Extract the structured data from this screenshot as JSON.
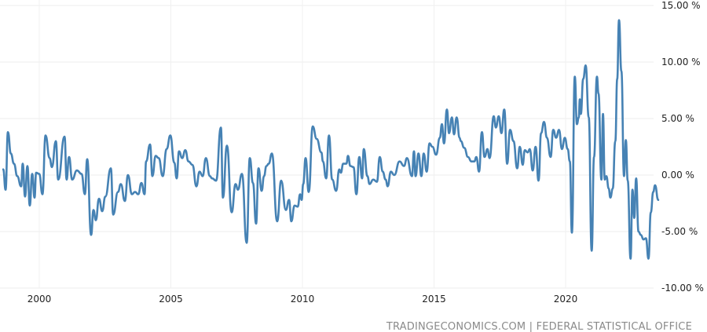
{
  "chart_data": {
    "type": "line",
    "title": "",
    "xlabel": "",
    "ylabel": "",
    "source": "TRADINGECONOMICS.COM | FEDERAL STATISTICAL OFFICE",
    "ylim": [
      -10,
      15
    ],
    "y_ticks": [
      15,
      10,
      5,
      0,
      -5,
      -10
    ],
    "y_tick_labels": [
      "15.00 %",
      "10.00 %",
      "5.00 %",
      "0.00 %",
      "-5.00 %",
      "-10.00 %"
    ],
    "x_ticks": [
      2000,
      2005,
      2010,
      2015,
      2020
    ],
    "x_tick_labels": [
      "2000",
      "2005",
      "2010",
      "2015",
      "2020"
    ],
    "grid": true,
    "line_color": "#4682b4",
    "series": [
      {
        "x": [
          1998.63,
          1998.72,
          1998.81,
          1998.92,
          1999.04,
          1999.16,
          1999.31,
          1999.37,
          1999.46,
          1999.55,
          1999.64,
          1999.73,
          1999.82,
          1999.88,
          2000.0,
          2000.12,
          2000.24,
          2000.39,
          2000.48,
          2000.63,
          2000.72,
          2000.96,
          2001.04,
          2001.13,
          2001.25,
          2001.43,
          2001.61,
          2001.73,
          2001.82,
          2001.97,
          2002.06,
          2002.15,
          2002.27,
          2002.39,
          2002.51,
          2002.72,
          2002.81,
          2002.99,
          2003.1,
          2003.25,
          2003.37,
          2003.52,
          2003.64,
          2003.76,
          2003.88,
          2004.0,
          2004.06,
          2004.21,
          2004.3,
          2004.42,
          2004.54,
          2004.69,
          2004.84,
          2004.98,
          2005.13,
          2005.22,
          2005.31,
          2005.43,
          2005.55,
          2005.67,
          2005.82,
          2005.97,
          2006.09,
          2006.21,
          2006.33,
          2006.48,
          2006.57,
          2006.72,
          2006.9,
          2006.98,
          2007.13,
          2007.31,
          2007.46,
          2007.55,
          2007.7,
          2007.88,
          2008.0,
          2008.12,
          2008.24,
          2008.33,
          2008.45,
          2008.54,
          2008.63,
          2008.72,
          2008.84,
          2009.04,
          2009.19,
          2009.37,
          2009.49,
          2009.58,
          2009.7,
          2009.82,
          2009.91,
          2009.97,
          2010.03,
          2010.12,
          2010.24,
          2010.39,
          2010.54,
          2010.72,
          2010.78,
          2010.9,
          2011.01,
          2011.13,
          2011.28,
          2011.4,
          2011.46,
          2011.55,
          2011.67,
          2011.73,
          2011.82,
          2011.94,
          2012.05,
          2012.16,
          2012.27,
          2012.33,
          2012.47,
          2012.55,
          2012.69,
          2012.83,
          2012.94,
          2013.05,
          2013.16,
          2013.24,
          2013.36,
          2013.49,
          2013.69,
          2013.86,
          2013.97,
          2014.16,
          2014.24,
          2014.3,
          2014.41,
          2014.52,
          2014.61,
          2014.72,
          2014.83,
          2014.94,
          2015.08,
          2015.22,
          2015.3,
          2015.38,
          2015.49,
          2015.57,
          2015.68,
          2015.76,
          2015.86,
          2015.97,
          2016.02,
          2016.15,
          2016.29,
          2016.42,
          2016.53,
          2016.61,
          2016.71,
          2016.82,
          2016.92,
          2017.03,
          2017.11,
          2017.27,
          2017.35,
          2017.46,
          2017.56,
          2017.67,
          2017.78,
          2017.89,
          2018.02,
          2018.16,
          2018.26,
          2018.37,
          2018.45,
          2018.56,
          2018.64,
          2018.75,
          2018.86,
          2018.97,
          2019.07,
          2019.18,
          2019.29,
          2019.43,
          2019.53,
          2019.64,
          2019.75,
          2019.86,
          2019.97,
          2020.08,
          2020.16,
          2020.24,
          2020.35,
          2020.43,
          2020.5,
          2020.54,
          2020.58,
          2020.67,
          2020.76,
          2020.88,
          2020.99,
          2021.08,
          2021.19,
          2021.25,
          2021.36,
          2021.42,
          2021.49,
          2021.55,
          2021.64,
          2021.7,
          2021.79,
          2021.89,
          2021.96,
          2022.03,
          2022.12,
          2022.22,
          2022.29,
          2022.36,
          2022.47,
          2022.54,
          2022.61,
          2022.68,
          2022.77,
          2022.86,
          2022.96,
          2023.05,
          2023.15,
          2023.24,
          2023.33,
          2023.4,
          2023.52
        ],
        "values": [
          0.5,
          -1.3,
          3.8,
          1.9,
          1.0,
          -0.1,
          -1.0,
          1.0,
          -1.9,
          0.8,
          -2.7,
          0.1,
          -2.0,
          0.2,
          0.1,
          -1.7,
          3.5,
          1.5,
          0.7,
          3.0,
          -0.4,
          3.4,
          -0.4,
          1.6,
          -0.4,
          0.4,
          0.1,
          -1.7,
          1.4,
          -5.3,
          -3.1,
          -4.0,
          -2.1,
          -3.2,
          -1.9,
          0.6,
          -3.5,
          -1.5,
          -0.8,
          -2.3,
          0.0,
          -1.7,
          -1.5,
          -1.7,
          -0.7,
          -1.7,
          1.2,
          2.7,
          -0.1,
          1.7,
          1.5,
          -0.1,
          2.3,
          3.5,
          1.1,
          -0.3,
          2.1,
          1.5,
          2.2,
          1.2,
          0.9,
          -1.0,
          0.3,
          -0.1,
          1.5,
          -0.1,
          -0.3,
          -0.5,
          4.2,
          -2.0,
          2.6,
          -3.3,
          -0.8,
          -1.3,
          0.1,
          -6.0,
          1.5,
          -0.7,
          -4.3,
          0.6,
          -1.4,
          -0.1,
          0.8,
          1.0,
          1.9,
          -4.1,
          -0.5,
          -3.1,
          -2.2,
          -4.1,
          -2.7,
          -2.8,
          -1.7,
          -2.2,
          -0.8,
          1.5,
          -1.5,
          4.3,
          3.2,
          2.0,
          1.2,
          -0.3,
          3.5,
          -0.4,
          -1.4,
          0.5,
          0.2,
          1.0,
          1.0,
          1.7,
          0.8,
          0.7,
          -1.7,
          1.6,
          -0.3,
          2.3,
          -0.1,
          -0.8,
          -0.4,
          -0.6,
          1.6,
          0.3,
          -0.4,
          -1.0,
          0.3,
          0.0,
          1.2,
          0.8,
          1.5,
          -0.1,
          2.1,
          -0.1,
          1.9,
          -0.1,
          1.9,
          0.3,
          2.8,
          2.5,
          1.8,
          3.3,
          4.5,
          2.8,
          5.8,
          3.7,
          5.1,
          3.6,
          5.1,
          3.3,
          3.0,
          2.4,
          1.6,
          1.2,
          1.2,
          1.6,
          0.3,
          3.8,
          1.6,
          2.3,
          1.5,
          5.2,
          4.2,
          5.2,
          3.7,
          5.8,
          1.0,
          4.0,
          3.0,
          0.6,
          2.5,
          0.9,
          2.2,
          2.0,
          2.3,
          0.4,
          2.5,
          -0.5,
          3.7,
          4.7,
          3.3,
          1.6,
          4.0,
          3.3,
          4.0,
          2.3,
          3.3,
          2.3,
          1.2,
          -5.1,
          8.7,
          4.5,
          5.1,
          6.7,
          5.4,
          8.5,
          9.7,
          5.1,
          -6.7,
          1.6,
          8.7,
          7.2,
          -0.4,
          5.4,
          -0.4,
          -0.1,
          -1.2,
          -2.0,
          -1.2,
          3.0,
          8.5,
          13.7,
          9.2,
          -0.1,
          3.1,
          -0.5,
          -7.4,
          -1.3,
          -3.8,
          -0.3,
          -5.0,
          -5.3,
          -5.7,
          -5.6,
          -7.4,
          -3.3,
          -1.5,
          -0.9,
          -2.2
        ]
      }
    ]
  }
}
